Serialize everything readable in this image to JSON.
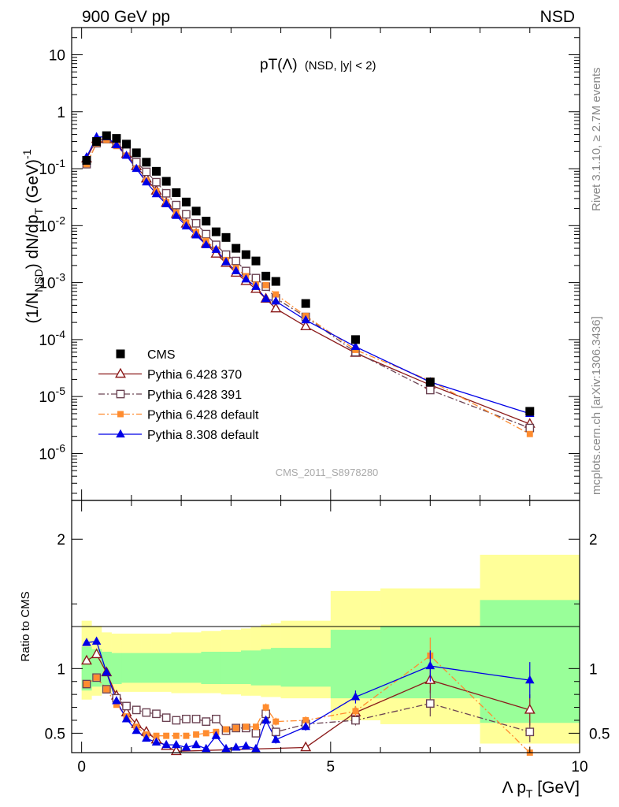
{
  "header": {
    "left": "900 GeV pp",
    "right": "NSD"
  },
  "side_labels": {
    "top": "Rivet 3.1.10, ≥ 2.7M events",
    "bottom": "mcplots.cern.ch [arXiv:1306.3436]"
  },
  "watermark": "CMS_2011_S8978280",
  "colors": {
    "cms": "#000000",
    "p370": "#8b1a1a",
    "p391": "#6b4353",
    "p6def": "#ff8c2f",
    "p8def": "#0000e6",
    "band_yellow": "#ffff99",
    "band_green": "#99ff99"
  },
  "chart_data": [
    {
      "type": "scatter",
      "panel": "main",
      "title": "pT(Λ) (NSD, |y| < 2)",
      "title_main": "pT(Λ)",
      "title_sub": "(NSD, |y| < 2)",
      "ylabel": "(1/N_NSD) dN/dp_T (GeV)^-1",
      "yscale": "log",
      "xlim": [
        -0.2,
        10
      ],
      "ylim": [
        1.5e-07,
        30
      ],
      "ytick_labels": [
        "10^-6",
        "10^-5",
        "10^-4",
        "10^-3",
        "10^-2",
        "10^-1",
        "1",
        "10"
      ],
      "legend_position": "bottom-left",
      "series": [
        {
          "name": "CMS",
          "key": "cms",
          "marker": "square-filled",
          "line": "none",
          "x": [
            0.1,
            0.3,
            0.5,
            0.7,
            0.9,
            1.1,
            1.3,
            1.5,
            1.7,
            1.9,
            2.1,
            2.3,
            2.5,
            2.7,
            2.9,
            3.1,
            3.3,
            3.5,
            3.7,
            3.9,
            4.5,
            5.5,
            7.0,
            9.0
          ],
          "y": [
            0.14,
            0.3,
            0.38,
            0.34,
            0.27,
            0.19,
            0.13,
            0.09,
            0.06,
            0.038,
            0.026,
            0.018,
            0.012,
            0.0078,
            0.0062,
            0.004,
            0.0031,
            0.0024,
            0.0013,
            0.00105,
            0.00043,
            0.0001,
            1.8e-05,
            5.5e-06
          ]
        },
        {
          "name": "Pythia 6.428 370",
          "key": "p370",
          "marker": "triangle-open",
          "line": "solid",
          "x": [
            0.1,
            0.3,
            0.5,
            0.7,
            0.9,
            1.1,
            1.3,
            1.5,
            1.7,
            1.9,
            2.1,
            2.3,
            2.5,
            2.7,
            2.9,
            3.1,
            3.3,
            3.5,
            3.7,
            3.9,
            4.5,
            5.5,
            7.0,
            9.0
          ],
          "y": [
            0.15,
            0.33,
            0.33,
            0.27,
            0.18,
            0.11,
            0.067,
            0.041,
            0.025,
            0.016,
            0.0108,
            0.0072,
            0.0048,
            0.0032,
            0.0022,
            0.00148,
            0.00106,
            0.00077,
            0.00052,
            0.00035,
            0.00017,
            5.8e-05,
            1.6e-05,
            3.3e-06
          ]
        },
        {
          "name": "Pythia 6.428 391",
          "key": "p391",
          "marker": "square-open",
          "line": "dashdot",
          "x": [
            0.1,
            0.3,
            0.5,
            0.7,
            0.9,
            1.1,
            1.3,
            1.5,
            1.7,
            1.9,
            2.1,
            2.3,
            2.5,
            2.7,
            2.9,
            3.1,
            3.3,
            3.5,
            3.7,
            3.9,
            4.5,
            5.5,
            7.0,
            9.0
          ],
          "y": [
            0.12,
            0.28,
            0.33,
            0.28,
            0.2,
            0.13,
            0.088,
            0.058,
            0.037,
            0.023,
            0.0158,
            0.011,
            0.0071,
            0.0046,
            0.0031,
            0.0024,
            0.0016,
            0.0012,
            0.00085,
            0.00053,
            0.00025,
            6e-05,
            1.3e-05,
            2.8e-06
          ]
        },
        {
          "name": "Pythia 6.428 default",
          "key": "p6def",
          "marker": "square-filled-small",
          "line": "dashdot",
          "x": [
            0.1,
            0.3,
            0.5,
            0.7,
            0.9,
            1.1,
            1.3,
            1.5,
            1.7,
            1.9,
            2.1,
            2.3,
            2.5,
            2.7,
            2.9,
            3.1,
            3.3,
            3.5,
            3.7,
            3.9,
            4.5,
            5.5,
            7.0,
            9.0
          ],
          "y": [
            0.12,
            0.28,
            0.32,
            0.25,
            0.17,
            0.1,
            0.062,
            0.04,
            0.026,
            0.017,
            0.0113,
            0.0077,
            0.0054,
            0.0038,
            0.0025,
            0.0018,
            0.0013,
            0.00092,
            0.0009,
            0.00062,
            0.00026,
            6.6e-05,
            1.9e-05,
            2.2e-06
          ]
        },
        {
          "name": "Pythia 8.308 default",
          "key": "p8def",
          "marker": "triangle-filled",
          "line": "solid",
          "x": [
            0.1,
            0.3,
            0.5,
            0.7,
            0.9,
            1.1,
            1.3,
            1.5,
            1.7,
            1.9,
            2.1,
            2.3,
            2.5,
            2.7,
            2.9,
            3.1,
            3.3,
            3.5,
            3.7,
            3.9,
            4.5,
            5.5,
            7.0,
            9.0
          ],
          "y": [
            0.16,
            0.36,
            0.36,
            0.26,
            0.17,
            0.1,
            0.058,
            0.036,
            0.024,
            0.015,
            0.0098,
            0.0068,
            0.0046,
            0.0038,
            0.0023,
            0.0016,
            0.00115,
            0.00085,
            0.00052,
            0.00047,
            0.00022,
            7.5e-05,
            1.8e-05,
            5e-06
          ]
        }
      ]
    },
    {
      "type": "scatter",
      "panel": "ratio",
      "ylabel": "Ratio to CMS",
      "xlabel": "Λ p_T [GeV]",
      "xlim": [
        -0.2,
        10
      ],
      "ylim": [
        0.35,
        2.3
      ],
      "xtick_labels": [
        "0",
        "5",
        "10"
      ],
      "ytick_labels": [
        "0.5",
        "1",
        "2"
      ],
      "bands": {
        "edges": [
          0.0,
          0.2,
          0.4,
          0.6,
          0.8,
          1.0,
          1.2,
          1.4,
          1.6,
          1.8,
          2.0,
          2.2,
          2.4,
          2.6,
          2.8,
          3.0,
          3.2,
          3.4,
          3.6,
          3.8,
          4.0,
          5.0,
          6.0,
          8.0,
          10.0
        ],
        "yellow": [
          [
            0.76,
            1.37
          ],
          [
            0.79,
            1.33
          ],
          [
            0.81,
            1.28
          ],
          [
            0.82,
            1.27
          ],
          [
            0.82,
            1.27
          ],
          [
            0.82,
            1.27
          ],
          [
            0.82,
            1.27
          ],
          [
            0.82,
            1.27
          ],
          [
            0.82,
            1.27
          ],
          [
            0.81,
            1.28
          ],
          [
            0.81,
            1.28
          ],
          [
            0.81,
            1.28
          ],
          [
            0.81,
            1.29
          ],
          [
            0.81,
            1.29
          ],
          [
            0.8,
            1.3
          ],
          [
            0.8,
            1.3
          ],
          [
            0.79,
            1.31
          ],
          [
            0.79,
            1.32
          ],
          [
            0.78,
            1.34
          ],
          [
            0.78,
            1.35
          ],
          [
            0.77,
            1.37
          ],
          [
            0.6,
            1.6
          ],
          [
            0.57,
            1.62
          ],
          [
            0.42,
            1.88
          ],
          [
            0.35,
            1.93
          ]
        ],
        "green": [
          [
            0.83,
            1.17
          ],
          [
            0.86,
            1.15
          ],
          [
            0.87,
            1.13
          ],
          [
            0.88,
            1.12
          ],
          [
            0.89,
            1.12
          ],
          [
            0.89,
            1.12
          ],
          [
            0.89,
            1.12
          ],
          [
            0.89,
            1.12
          ],
          [
            0.89,
            1.12
          ],
          [
            0.89,
            1.12
          ],
          [
            0.89,
            1.12
          ],
          [
            0.89,
            1.12
          ],
          [
            0.88,
            1.13
          ],
          [
            0.88,
            1.13
          ],
          [
            0.88,
            1.13
          ],
          [
            0.88,
            1.13
          ],
          [
            0.88,
            1.14
          ],
          [
            0.87,
            1.14
          ],
          [
            0.87,
            1.15
          ],
          [
            0.87,
            1.16
          ],
          [
            0.86,
            1.16
          ],
          [
            0.77,
            1.3
          ],
          [
            0.77,
            1.33
          ],
          [
            0.58,
            1.53
          ],
          [
            0.58,
            1.52
          ]
        ]
      },
      "series": [
        {
          "name": "Pythia 6.428 370",
          "key": "p370",
          "marker": "triangle-open",
          "line": "solid",
          "x": [
            0.1,
            0.3,
            0.5,
            0.7,
            0.9,
            1.1,
            1.3,
            1.5,
            1.7,
            1.9,
            4.5,
            5.5,
            7.0,
            9.0
          ],
          "y": [
            1.06,
            1.11,
            0.97,
            0.79,
            0.66,
            0.57,
            0.51,
            0.45,
            0.4,
            0.36,
            0.39,
            0.66,
            0.91,
            0.68
          ],
          "err": [
            0.02,
            0.02,
            0.02,
            0.02,
            0.02,
            0.02,
            0.02,
            0.02,
            0.02,
            0.02,
            0.02,
            0.05,
            0.1,
            0.12
          ]
        },
        {
          "name": "Pythia 6.428 391",
          "key": "p391",
          "marker": "square-open",
          "line": "dashdot",
          "x": [
            0.1,
            0.3,
            0.5,
            0.7,
            0.9,
            1.1,
            1.3,
            1.5,
            1.7,
            1.9,
            2.1,
            2.3,
            2.5,
            2.7,
            2.9,
            3.1,
            3.3,
            3.5,
            3.7,
            3.9,
            4.5,
            5.5,
            7.0,
            9.0
          ],
          "y": [
            0.88,
            0.93,
            0.84,
            0.77,
            0.71,
            0.68,
            0.66,
            0.65,
            0.62,
            0.6,
            0.61,
            0.61,
            0.59,
            0.61,
            0.52,
            0.54,
            0.54,
            0.5,
            0.65,
            0.51,
            0.57,
            0.6,
            0.73,
            0.51
          ],
          "err": [
            0.01,
            0.01,
            0.01,
            0.01,
            0.01,
            0.01,
            0.01,
            0.01,
            0.01,
            0.01,
            0.01,
            0.01,
            0.02,
            0.02,
            0.02,
            0.02,
            0.02,
            0.02,
            0.03,
            0.03,
            0.03,
            0.04,
            0.1,
            0.08
          ]
        },
        {
          "name": "Pythia 6.428 default",
          "key": "p6def",
          "marker": "square-filled-small",
          "line": "dashdot",
          "x": [
            0.1,
            0.3,
            0.5,
            0.7,
            0.9,
            1.1,
            1.3,
            1.5,
            1.7,
            1.9,
            2.1,
            2.3,
            2.5,
            2.7,
            2.9,
            3.1,
            3.3,
            3.5,
            3.7,
            3.9,
            4.5,
            5.5,
            7.0,
            9.0
          ],
          "y": [
            0.88,
            0.93,
            0.84,
            0.72,
            0.63,
            0.55,
            0.49,
            0.48,
            0.48,
            0.48,
            0.48,
            0.49,
            0.5,
            0.51,
            0.53,
            0.54,
            0.55,
            0.55,
            0.7,
            0.59,
            0.6,
            0.67,
            1.1,
            0.35
          ],
          "err": [
            0.01,
            0.01,
            0.01,
            0.01,
            0.01,
            0.01,
            0.01,
            0.01,
            0.01,
            0.01,
            0.01,
            0.01,
            0.02,
            0.02,
            0.02,
            0.02,
            0.02,
            0.02,
            0.03,
            0.03,
            0.03,
            0.04,
            0.14,
            0.05
          ]
        },
        {
          "name": "Pythia 8.308 default",
          "key": "p8def",
          "marker": "triangle-filled",
          "line": "solid",
          "x": [
            0.1,
            0.3,
            0.5,
            0.7,
            0.9,
            1.1,
            1.3,
            1.5,
            1.7,
            1.9,
            2.1,
            2.3,
            2.5,
            2.7,
            2.9,
            3.1,
            3.3,
            3.5,
            3.7,
            3.9,
            4.5,
            5.5,
            7.0,
            9.0
          ],
          "y": [
            1.2,
            1.21,
            0.97,
            0.75,
            0.61,
            0.52,
            0.46,
            0.43,
            0.41,
            0.41,
            0.39,
            0.41,
            0.38,
            0.48,
            0.38,
            0.39,
            0.4,
            0.38,
            0.6,
            0.45,
            0.55,
            0.78,
            1.02,
            0.91
          ],
          "err": [
            0.01,
            0.01,
            0.01,
            0.01,
            0.01,
            0.01,
            0.01,
            0.01,
            0.01,
            0.01,
            0.01,
            0.01,
            0.02,
            0.02,
            0.02,
            0.02,
            0.02,
            0.02,
            0.03,
            0.03,
            0.03,
            0.05,
            0.12,
            0.14
          ]
        }
      ]
    }
  ]
}
